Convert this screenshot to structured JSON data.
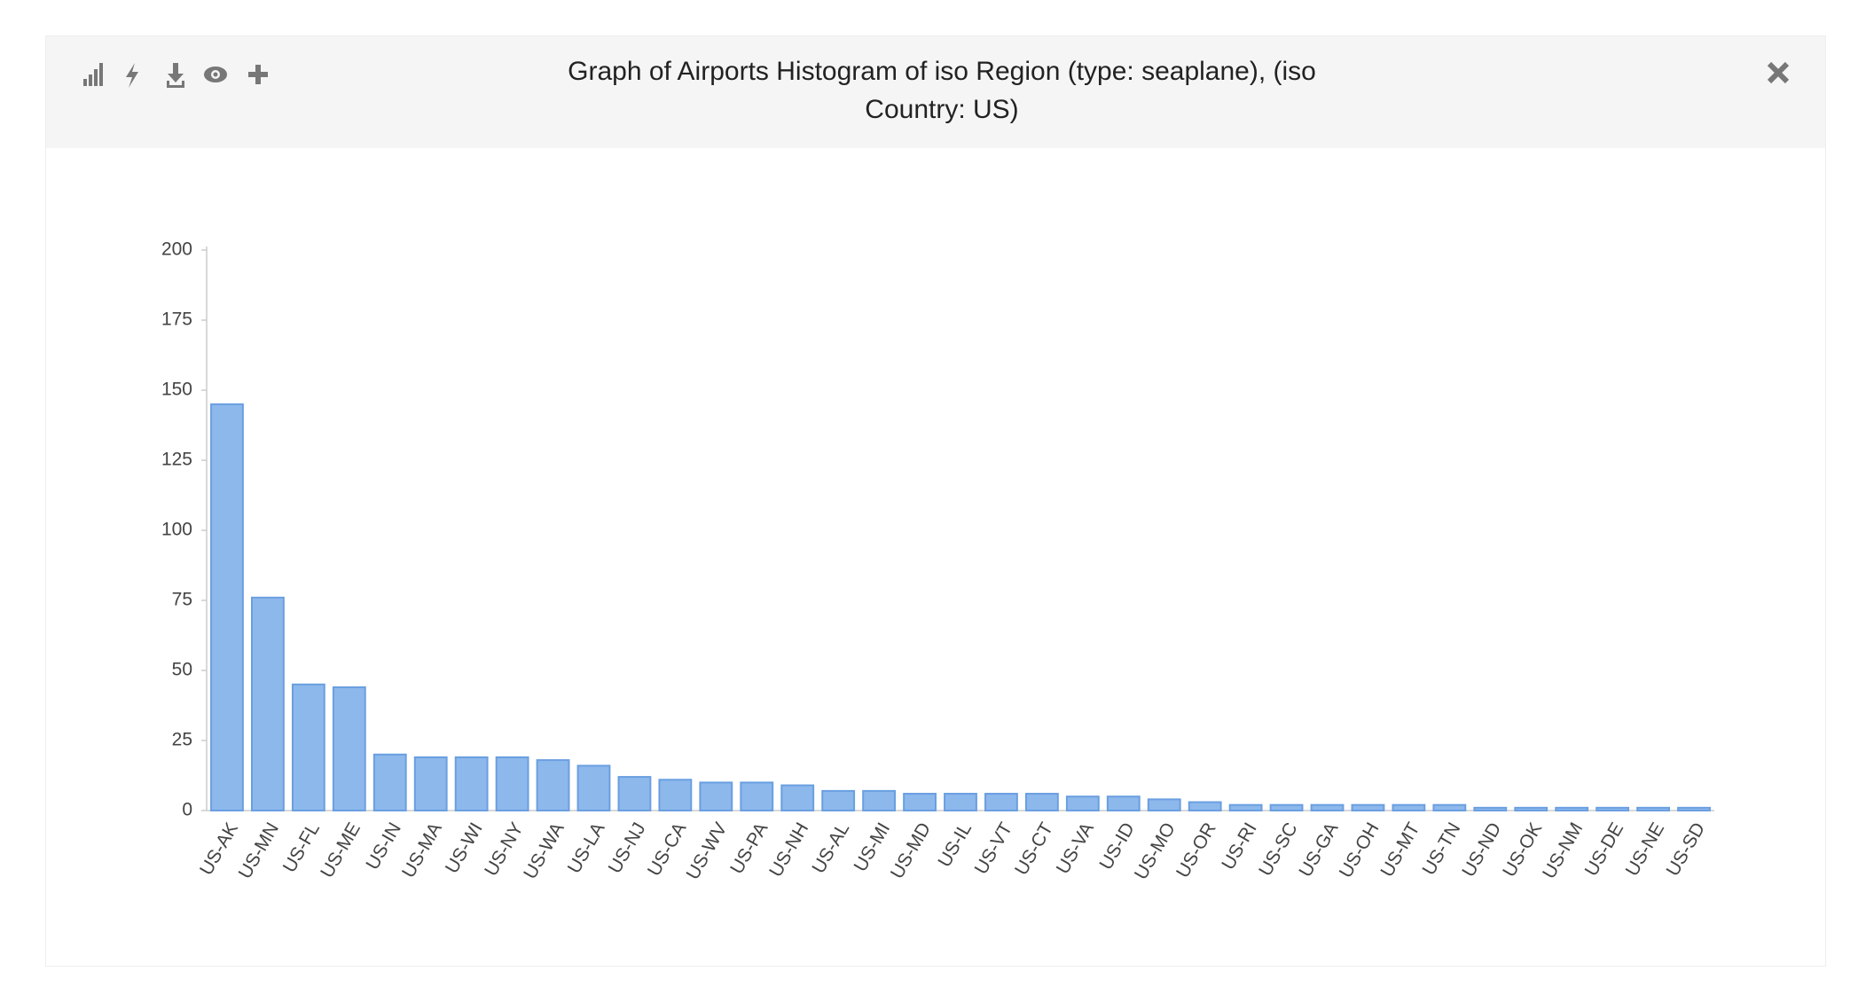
{
  "chart_data": {
    "type": "bar",
    "title": "Graph of Airports Histogram of iso Region (type: seaplane), (iso Country: US)",
    "categories": [
      "US-AK",
      "US-MN",
      "US-FL",
      "US-ME",
      "US-IN",
      "US-MA",
      "US-WI",
      "US-NY",
      "US-WA",
      "US-LA",
      "US-NJ",
      "US-CA",
      "US-WV",
      "US-PA",
      "US-NH",
      "US-AL",
      "US-MI",
      "US-MD",
      "US-IL",
      "US-VT",
      "US-CT",
      "US-VA",
      "US-ID",
      "US-MO",
      "US-OR",
      "US-RI",
      "US-SC",
      "US-GA",
      "US-OH",
      "US-MT",
      "US-TN",
      "US-ND",
      "US-OK",
      "US-NM",
      "US-DE",
      "US-NE",
      "US-SD"
    ],
    "values": [
      145,
      76,
      45,
      44,
      20,
      19,
      19,
      19,
      18,
      16,
      12,
      11,
      10,
      10,
      9,
      7,
      7,
      6,
      6,
      6,
      6,
      5,
      5,
      4,
      3,
      2,
      2,
      2,
      2,
      2,
      2,
      1,
      1,
      1,
      1,
      1,
      1
    ],
    "color": "#8db8ec",
    "ylim": [
      0,
      200
    ],
    "yticks": [
      0,
      25,
      50,
      75,
      100,
      125,
      150,
      175,
      200
    ],
    "grid": false
  }
}
